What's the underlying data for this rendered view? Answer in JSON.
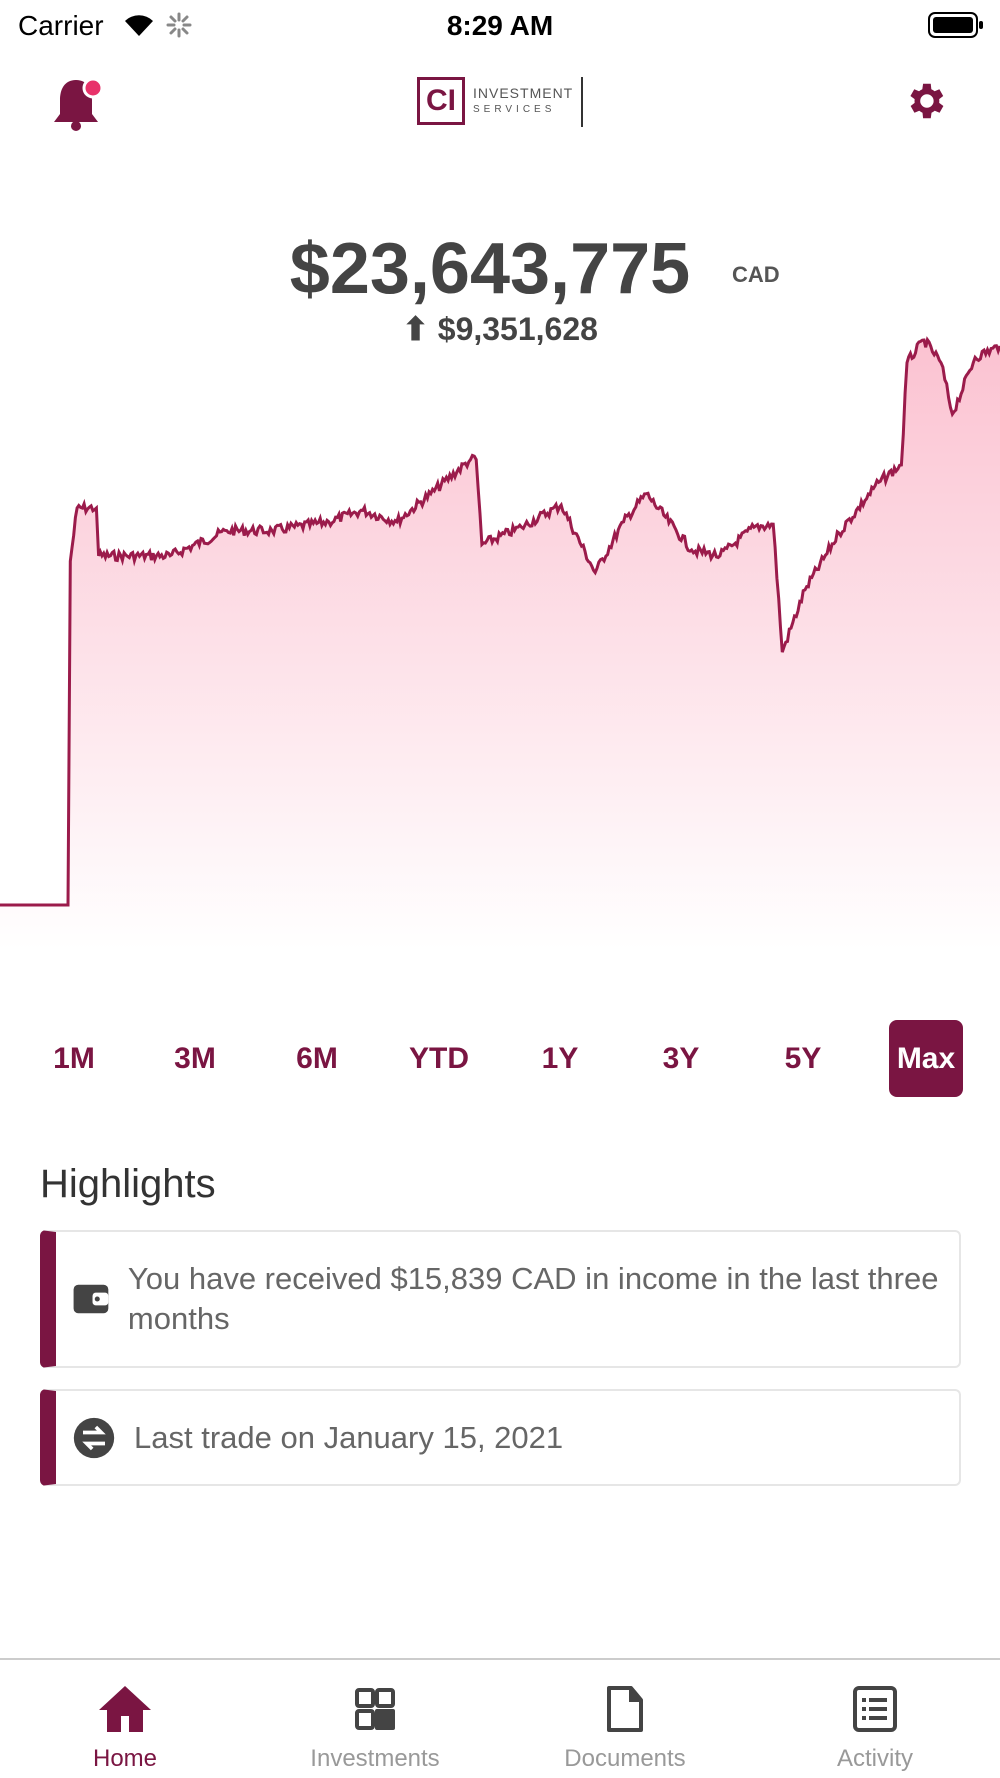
{
  "status_bar": {
    "carrier": "Carrier",
    "time": "8:29 AM"
  },
  "header": {
    "logo_text": "CI INVESTMENT SERVICES",
    "notification_dot": true
  },
  "portfolio": {
    "total": "$23,643,775",
    "currency": "CAD",
    "change": "$9,351,628",
    "change_direction": "up"
  },
  "chart_data": {
    "type": "area",
    "title": "",
    "xlabel": "",
    "ylabel": "",
    "grid": false,
    "color": "#9b1b4b",
    "fill": "#fbc6d4",
    "values": [
      14.29,
      14.29,
      20.04,
      20.93,
      20.93,
      20.13,
      20.13,
      20.55,
      20.55,
      20.7,
      20.89,
      20.7,
      21.17,
      21.74,
      21.74,
      20.32,
      20.61,
      20.98,
      19.85,
      20.7,
      21.17,
      20.23,
      20.13,
      20.61,
      20.66,
      18.52,
      19.56,
      20.51,
      21.36,
      21.65,
      23.36,
      23.74,
      23.36,
      22.5,
      23.45,
      23.64
    ],
    "x_index": [
      0,
      60,
      62,
      68,
      85,
      87,
      150,
      200,
      240,
      290,
      320,
      350,
      380,
      415,
      420,
      425,
      460,
      495,
      525,
      550,
      570,
      610,
      635,
      665,
      682,
      690,
      710,
      740,
      775,
      795,
      800,
      815,
      830,
      840,
      860,
      882
    ],
    "unit": "CAD millions (estimated)"
  },
  "periods": {
    "items": [
      "1M",
      "3M",
      "6M",
      "YTD",
      "1Y",
      "3Y",
      "5Y",
      "Max"
    ],
    "selected": "Max"
  },
  "highlights": {
    "title": "Highlights",
    "items": [
      {
        "icon": "wallet-icon",
        "text": "You have received $15,839 CAD in income in the last three months"
      },
      {
        "icon": "exchange-icon",
        "text": "Last trade on January 15, 2021"
      }
    ]
  },
  "tabbar": {
    "items": [
      {
        "label": "Home",
        "icon": "home-icon"
      },
      {
        "label": "Investments",
        "icon": "grid-icon"
      },
      {
        "label": "Documents",
        "icon": "document-icon"
      },
      {
        "label": "Activity",
        "icon": "list-icon"
      }
    ],
    "active": "Home"
  },
  "colors": {
    "accent": "#7a1542",
    "line": "#9b1b4b",
    "fill": "#fbc6d4"
  }
}
